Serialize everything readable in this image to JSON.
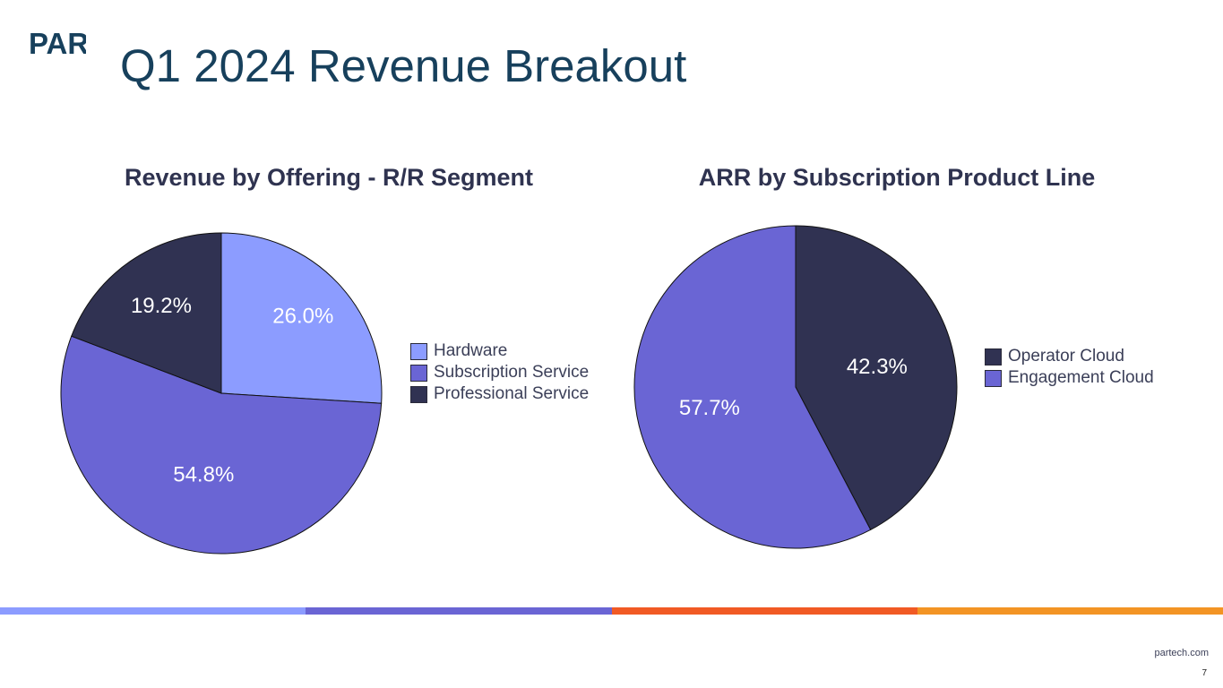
{
  "brand": {
    "logo_text": "PAR"
  },
  "page": {
    "title": "Q1 2024 Revenue Breakout",
    "url": "partech.com",
    "number": "7"
  },
  "colors": {
    "light_blue": "#8c9cff",
    "purple": "#6a65d4",
    "navy": "#303252",
    "orange_red": "#f15a24",
    "orange": "#f39424"
  },
  "bottom_bar": [
    "#8c9cff",
    "#6a65d4",
    "#f15a24",
    "#f39424"
  ],
  "chart_data": [
    {
      "type": "pie",
      "title": "Revenue by Offering - R/R Segment",
      "categories": [
        "Hardware",
        "Subscription Service",
        "Professional Service"
      ],
      "values": [
        26.0,
        54.8,
        19.2
      ],
      "labels": [
        "26.0%",
        "54.8%",
        "19.2%"
      ],
      "colors": [
        "#8c9cff",
        "#6a65d4",
        "#303252"
      ],
      "start": "12 o'clock, clockwise",
      "legend": "right"
    },
    {
      "type": "pie",
      "title": "ARR by Subscription Product Line",
      "categories": [
        "Operator Cloud",
        "Engagement Cloud"
      ],
      "values": [
        42.3,
        57.7
      ],
      "labels": [
        "42.3%",
        "57.7%"
      ],
      "colors": [
        "#303252",
        "#6a65d4"
      ],
      "start": "12 o'clock, clockwise",
      "legend": "right"
    }
  ]
}
